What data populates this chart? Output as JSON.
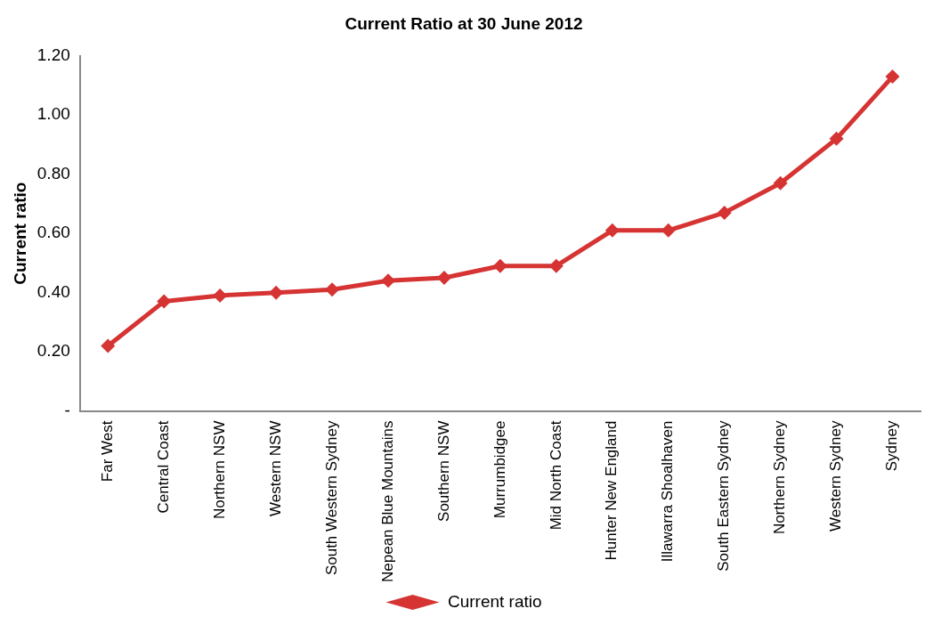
{
  "chart_data": {
    "type": "line",
    "title": "Current Ratio at 30 June 2012",
    "ylabel": "Current ratio",
    "categories": [
      "Far West",
      "Central Coast",
      "Northern NSW",
      "Western NSW",
      "South Western Sydney",
      "Nepean Blue Mountains",
      "Southern NSW",
      "Murrumbidgee",
      "Mid North Coast",
      "Hunter New England",
      "Illawarra Shoalhaven",
      "South Eastern Sydney",
      "Northern Sydney",
      "Western Sydney",
      "Sydney"
    ],
    "series": [
      {
        "name": "Current ratio",
        "color": "#d63333",
        "values": [
          0.22,
          0.37,
          0.39,
          0.4,
          0.41,
          0.44,
          0.45,
          0.49,
          0.49,
          0.61,
          0.61,
          0.67,
          0.77,
          0.92,
          1.13
        ]
      }
    ],
    "ylim": [
      0,
      1.2
    ],
    "yticks": [
      {
        "value": 0,
        "label": "-"
      },
      {
        "value": 0.2,
        "label": "0.20"
      },
      {
        "value": 0.4,
        "label": "0.40"
      },
      {
        "value": 0.6,
        "label": "0.60"
      },
      {
        "value": 0.8,
        "label": "0.80"
      },
      {
        "value": 1,
        "label": "1.00"
      },
      {
        "value": 1.2,
        "label": "1.20"
      }
    ],
    "grid": false,
    "legend": "bottom",
    "marker": "diamond",
    "line_style": "solid"
  }
}
